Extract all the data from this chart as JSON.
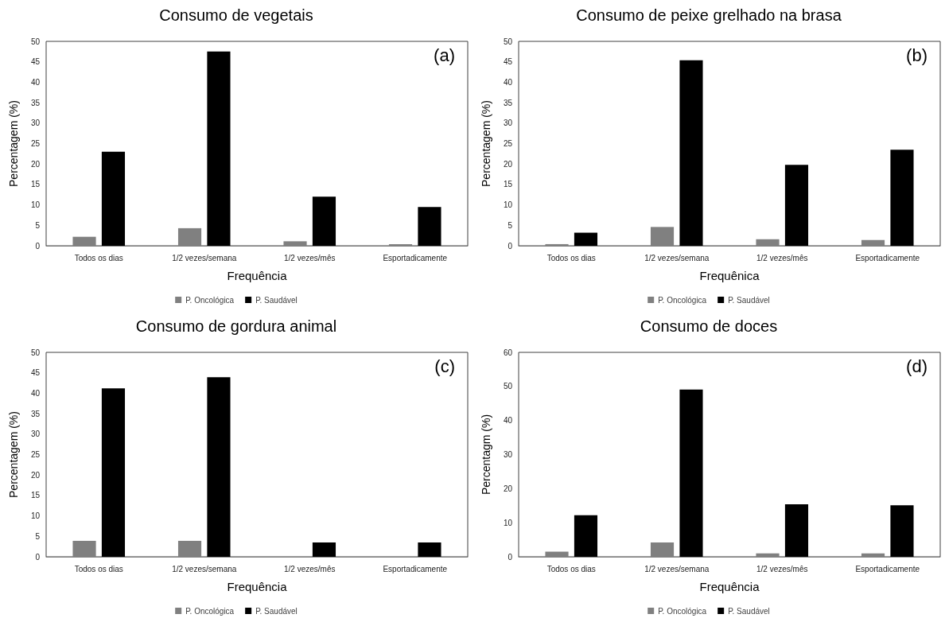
{
  "chart_data": [
    {
      "type": "bar",
      "title": "Consumo de vegetais",
      "xlabel": "Frequência",
      "ylabel": "Percentagem (%)",
      "annotations": [
        "(a)"
      ],
      "categories": [
        "Todos os dias",
        "1/2 vezes/semana",
        "1/2 vezes/mês",
        "Esportadicamente"
      ],
      "series": [
        {
          "name": "P. Oncológica",
          "color": "#808080",
          "values": [
            2.2,
            4.3,
            1.1,
            0.4
          ]
        },
        {
          "name": "P. Saudável",
          "color": "#000000",
          "values": [
            23,
            47.5,
            12,
            9.5
          ]
        }
      ],
      "ylim": [
        0,
        50
      ],
      "yticks": [
        0,
        5,
        10,
        15,
        20,
        25,
        30,
        35,
        40,
        45,
        50
      ],
      "legend": "bottom"
    },
    {
      "type": "bar",
      "title": "Consumo de peixe grelhado na brasa",
      "xlabel": "Frequênica",
      "ylabel": "Percentagem (%)",
      "annotations": [
        "(b)"
      ],
      "categories": [
        "Todos os dias",
        "1/2 vezes/semana",
        "1/2 vezes/mês",
        "Esportadicamente"
      ],
      "series": [
        {
          "name": "P. Oncológica",
          "color": "#808080",
          "values": [
            0.4,
            4.6,
            1.6,
            1.4
          ]
        },
        {
          "name": "P. Saudável",
          "color": "#000000",
          "values": [
            3.2,
            45.4,
            19.8,
            23.5
          ]
        }
      ],
      "ylim": [
        0,
        50
      ],
      "yticks": [
        0,
        5,
        10,
        15,
        20,
        25,
        30,
        35,
        40,
        45,
        50
      ],
      "legend": "bottom"
    },
    {
      "type": "bar",
      "title": "Consumo de gordura animal",
      "xlabel": "Frequência",
      "ylabel": "Percentagem (%)",
      "annotations": [
        "(c)"
      ],
      "categories": [
        "Todos os dias",
        "1/2 vezes/semana",
        "1/2 vezes/mês",
        "Esportadicamente"
      ],
      "series": [
        {
          "name": "P. Oncológica",
          "color": "#808080",
          "values": [
            3.9,
            3.9,
            0,
            0
          ]
        },
        {
          "name": "P. Saudável",
          "color": "#000000",
          "values": [
            41.2,
            43.9,
            3.5,
            3.5
          ]
        }
      ],
      "ylim": [
        0,
        50
      ],
      "yticks": [
        0,
        5,
        10,
        15,
        20,
        25,
        30,
        35,
        40,
        45,
        50
      ],
      "legend": "bottom"
    },
    {
      "type": "bar",
      "title": "Consumo de doces",
      "xlabel": "Frequência",
      "ylabel": "Percentagm (%)",
      "annotations": [
        "(d)"
      ],
      "categories": [
        "Todos os dias",
        "1/2 vezes/semana",
        "1/2 vezes/mês",
        "Esportadicamente"
      ],
      "series": [
        {
          "name": "P. Oncológica",
          "color": "#808080",
          "values": [
            1.5,
            4.2,
            1.0,
            1.0
          ]
        },
        {
          "name": "P. Saudável",
          "color": "#000000",
          "values": [
            12.2,
            49.1,
            15.4,
            15.1
          ]
        }
      ],
      "ylim": [
        0,
        60
      ],
      "yticks": [
        0,
        10,
        20,
        30,
        40,
        50,
        60
      ],
      "legend": "bottom"
    }
  ]
}
